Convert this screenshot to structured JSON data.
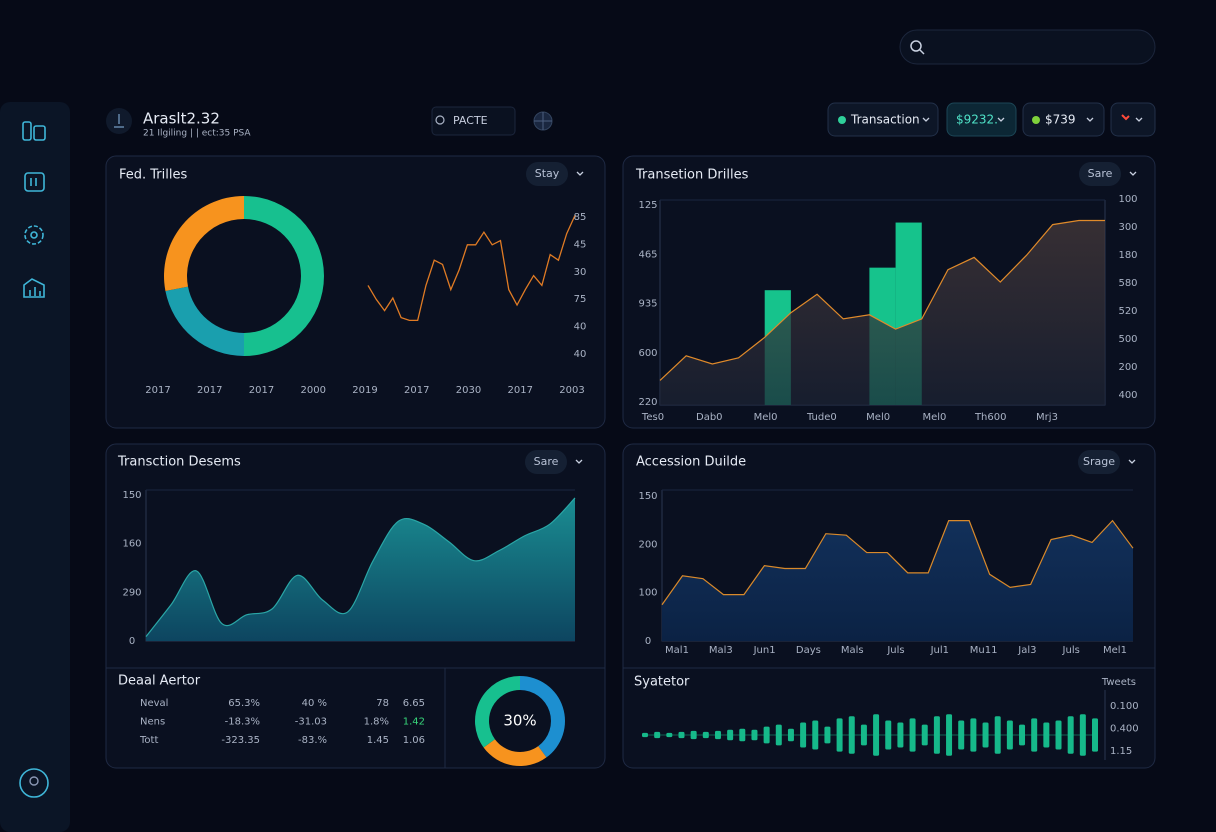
{
  "header": {
    "title": "Araslt2.32",
    "subtitle": "21 Ilgiling | | ect:35 PSA",
    "search_label": "PACTE",
    "buttons": [
      "Transaction",
      "$9232.",
      "$739"
    ]
  },
  "chart_data": [
    {
      "type": "donut",
      "title": "Fed. Trilles",
      "button": "Stay",
      "values": [
        50,
        22,
        28
      ],
      "colors": [
        "#17c08f",
        "#1a9fae",
        "#f7931e"
      ]
    },
    {
      "type": "line",
      "x_labels": [
        "2017",
        "2017",
        "2017",
        "2000",
        "2019",
        "2017",
        "2030",
        "2017",
        "2003"
      ],
      "y_labels": [
        "85",
        "45",
        "30",
        "75",
        "40",
        "40"
      ],
      "ylim": [
        0,
        100
      ],
      "color": "#e07b24",
      "values": [
        39,
        29,
        21,
        30,
        16,
        14,
        14,
        39,
        57,
        54,
        36,
        50,
        68,
        68,
        77,
        68,
        71,
        36,
        25,
        36,
        46,
        39,
        61,
        57,
        76,
        89
      ]
    },
    {
      "type": "area-bar",
      "title": "Transetion Drilles",
      "button": "Sare",
      "y_labels": [
        "125",
        "465",
        "935",
        "600",
        "220"
      ],
      "y2_labels": [
        "100",
        "300",
        "180",
        "580",
        "520",
        "500",
        "200",
        "400"
      ],
      "x_labels": [
        "Tes0",
        "Dab0",
        "Mel0",
        "Tude0",
        "Mel0",
        "Mel0",
        "Th600",
        "Mrj3"
      ],
      "ylim": [
        0,
        100
      ],
      "color": "#e08a2a",
      "bar_color": "#16c38c",
      "values": [
        12,
        24,
        20,
        23,
        33,
        45,
        54,
        42,
        44,
        37,
        42,
        66,
        72,
        60,
        73,
        88,
        90,
        90
      ],
      "bar_values": [
        null,
        null,
        null,
        null,
        56,
        null,
        null,
        null,
        67,
        89,
        null,
        null,
        null,
        null,
        null,
        null,
        null,
        null
      ]
    },
    {
      "type": "area",
      "title": "Transction Desems",
      "button": "Sare",
      "y_labels": [
        "150",
        "160",
        "290",
        "0"
      ],
      "ylim": [
        0,
        100
      ],
      "color": "#2aa6a6",
      "smooth": true,
      "values": [
        3,
        25,
        48,
        12,
        18,
        22,
        45,
        28,
        20,
        55,
        82,
        80,
        68,
        55,
        62,
        72,
        80,
        98
      ]
    },
    {
      "type": "area",
      "title": "Accession Duilde",
      "button": "Srage",
      "y_labels": [
        "150",
        "200",
        "100",
        "0"
      ],
      "x_labels": [
        "Mal1",
        "Mal3",
        "Jun1",
        "Days",
        "Mals",
        "Juls",
        "Jul1",
        "Mu11",
        "Jal3",
        "Juls",
        "Mel1"
      ],
      "ylim": [
        0,
        100
      ],
      "color": "#d9892a",
      "smooth": false,
      "values": [
        25,
        45,
        43,
        32,
        32,
        52,
        50,
        50,
        74,
        73,
        61,
        61,
        47,
        47,
        83,
        83,
        46,
        37,
        39,
        70,
        73,
        68,
        83,
        64
      ]
    },
    {
      "type": "donut",
      "center_label": "30%",
      "values": [
        40,
        25,
        35
      ],
      "colors": [
        "#1d8fd0",
        "#f7931e",
        "#17c08f"
      ]
    },
    {
      "type": "bars",
      "title": "Syatetor",
      "legend_label": "Tweets",
      "y_labels": [
        "0.100",
        "0.400",
        "1.15"
      ],
      "ylim": [
        0,
        25
      ],
      "color": "#16b98a",
      "values": [
        2,
        3,
        2,
        3,
        4,
        3,
        4,
        5,
        6,
        5,
        8,
        10,
        6,
        12,
        14,
        8,
        16,
        18,
        10,
        20,
        14,
        12,
        16,
        10,
        18,
        20,
        14,
        16,
        12,
        18,
        14,
        10,
        16,
        12,
        14,
        18,
        20,
        16
      ]
    }
  ],
  "table": {
    "title": "Deaal Aertor",
    "highlight_cell": [
      1,
      4
    ],
    "highlight_color": "#37d67a",
    "rows": [
      [
        "Neval",
        "65.3%",
        "40 %",
        "78",
        "6.65"
      ],
      [
        "Nens",
        "-18.3%",
        "-31.03",
        "1.8%",
        "1.42"
      ],
      [
        "Tott",
        "-323.35",
        "-83.%",
        "1.45",
        "1.06"
      ]
    ]
  }
}
